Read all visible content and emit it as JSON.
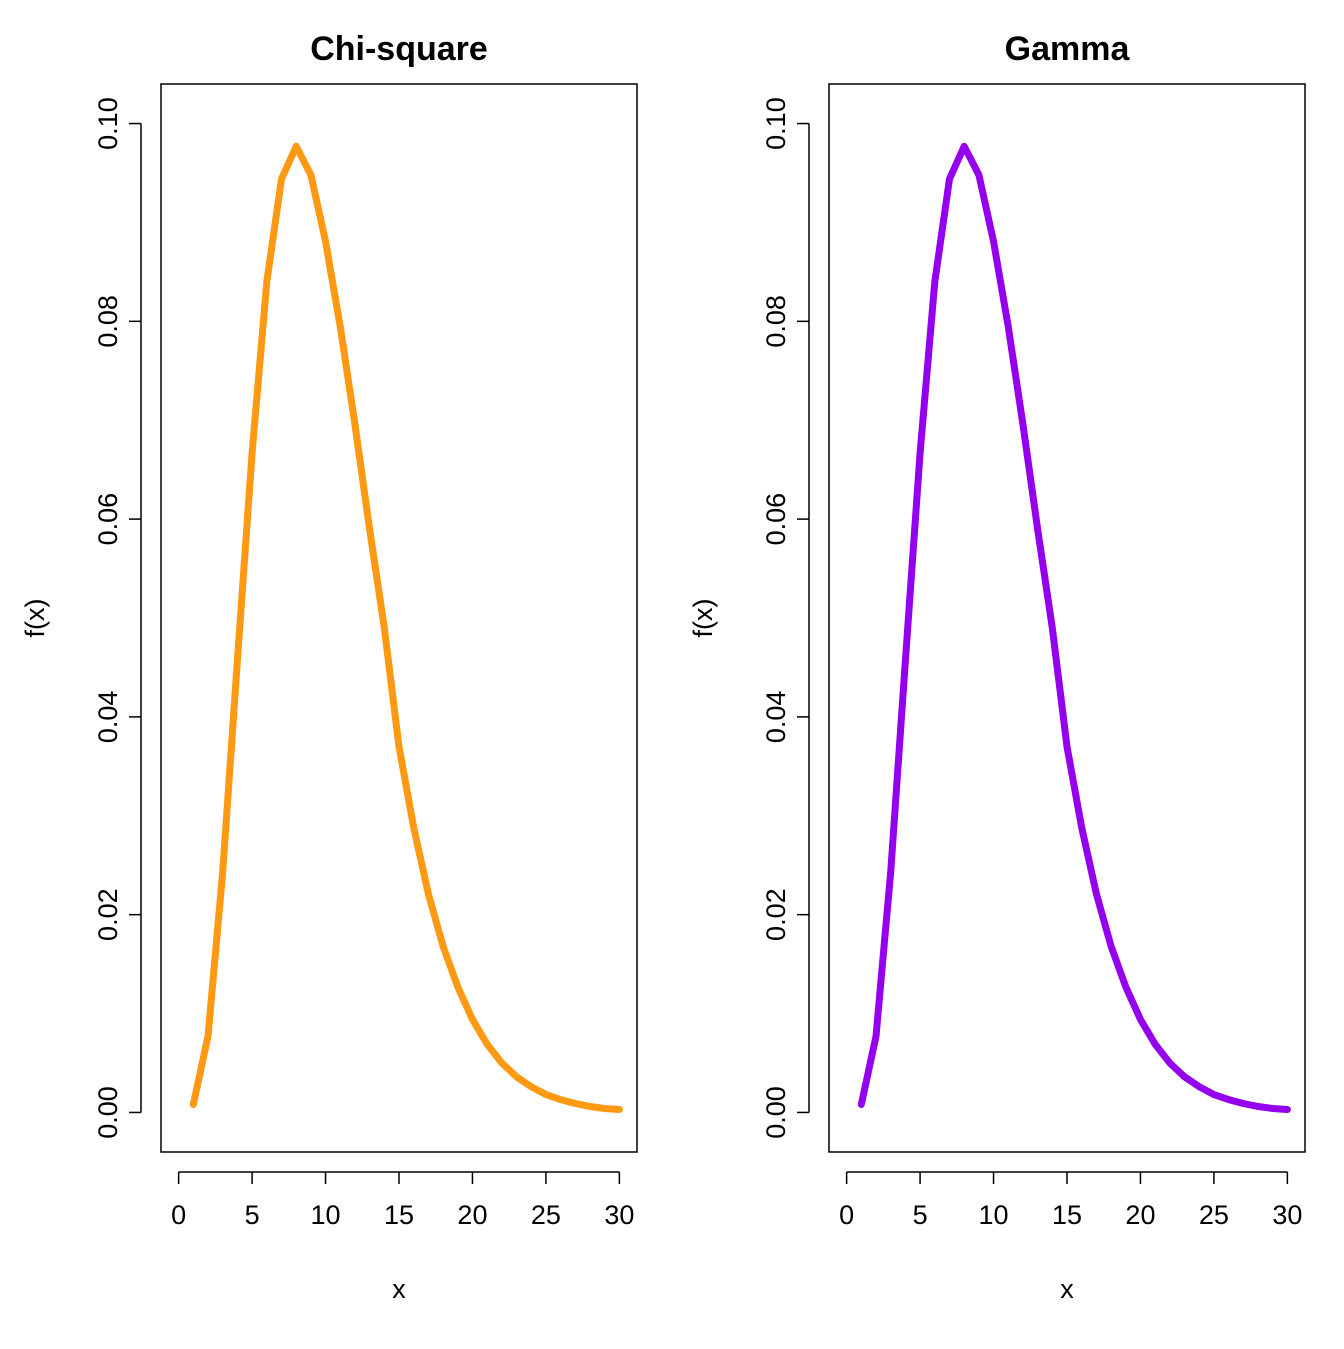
{
  "chart_data": [
    {
      "type": "line",
      "title": "Chi-square",
      "xlabel": "x",
      "ylabel": "f(x)",
      "xlim": [
        0,
        30
      ],
      "ylim": [
        0,
        0.1
      ],
      "xticks": [
        "0",
        "5",
        "10",
        "15",
        "20",
        "25",
        "30"
      ],
      "yticks": [
        "0.00",
        "0.02",
        "0.04",
        "0.06",
        "0.08",
        "0.10"
      ],
      "grid": false,
      "color": "#FF9912",
      "series": [
        {
          "x": [
            1,
            2,
            3,
            4,
            5,
            6,
            7,
            8,
            9,
            10,
            11,
            12,
            13,
            14,
            15,
            16,
            17,
            18,
            19,
            20,
            21,
            22,
            23,
            24,
            25,
            26,
            27,
            28,
            29,
            30
          ],
          "values": [
            0.0008,
            0.0077,
            0.0243,
            0.0457,
            0.0667,
            0.084,
            0.0944,
            0.0977,
            0.0948,
            0.0881,
            0.0795,
            0.0696,
            0.059,
            0.049,
            0.037,
            0.0288,
            0.0221,
            0.0168,
            0.0127,
            0.0094,
            0.0069,
            0.005,
            0.0036,
            0.0026,
            0.0018,
            0.0013,
            0.0009,
            0.0006,
            0.0004,
            0.0003
          ]
        }
      ]
    },
    {
      "type": "line",
      "title": "Gamma",
      "xlabel": "x",
      "ylabel": "f(x)",
      "xlim": [
        0,
        30
      ],
      "ylim": [
        0,
        0.1
      ],
      "xticks": [
        "0",
        "5",
        "10",
        "15",
        "20",
        "25",
        "30"
      ],
      "yticks": [
        "0.00",
        "0.02",
        "0.04",
        "0.06",
        "0.08",
        "0.10"
      ],
      "grid": false,
      "color": "#9400EE",
      "series": [
        {
          "x": [
            1,
            2,
            3,
            4,
            5,
            6,
            7,
            8,
            9,
            10,
            11,
            12,
            13,
            14,
            15,
            16,
            17,
            18,
            19,
            20,
            21,
            22,
            23,
            24,
            25,
            26,
            27,
            28,
            29,
            30
          ],
          "values": [
            0.0008,
            0.0077,
            0.0243,
            0.0457,
            0.0667,
            0.084,
            0.0944,
            0.0977,
            0.0948,
            0.0881,
            0.0795,
            0.0696,
            0.059,
            0.049,
            0.037,
            0.0288,
            0.0221,
            0.0168,
            0.0127,
            0.0094,
            0.0069,
            0.005,
            0.0036,
            0.0026,
            0.0018,
            0.0013,
            0.0009,
            0.0006,
            0.0004,
            0.0003
          ]
        }
      ]
    }
  ]
}
